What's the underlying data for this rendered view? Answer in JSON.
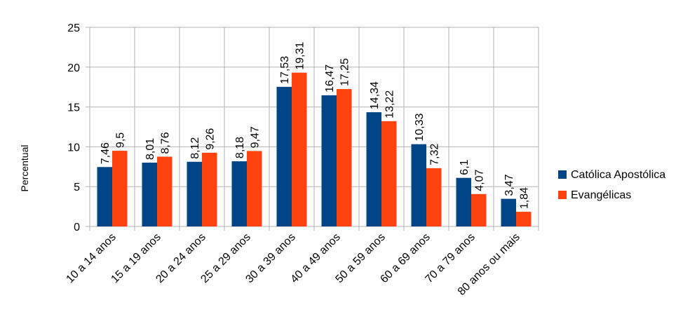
{
  "chart_data": {
    "type": "bar",
    "title": "",
    "xlabel": "",
    "ylabel": "Percentual",
    "ylim": [
      0,
      25
    ],
    "yticks": [
      "0",
      "5",
      "10",
      "15",
      "20",
      "25"
    ],
    "grid": true,
    "legend_position": "right",
    "categories": [
      "10 a 14 anos",
      "15 a 19 anos",
      "20 a 24 anos",
      "25 a 29 anos",
      "30 a 39 anos",
      "40 a 49 anos",
      "50 a 59 anos",
      "60 a 69 anos",
      "70 a 79 anos",
      "80 anos ou mais"
    ],
    "series": [
      {
        "name": "Católica Apostólica",
        "color": "#004586",
        "values": [
          7.46,
          8.01,
          8.12,
          8.18,
          17.53,
          16.47,
          14.34,
          10.33,
          6.1,
          3.47
        ],
        "labels": [
          "7,46",
          "8,01",
          "8,12",
          "8,18",
          "17,53",
          "16,47",
          "14,34",
          "10,33",
          "6,1",
          "3,47"
        ]
      },
      {
        "name": "Evangélicas",
        "color": "#ff420e",
        "values": [
          9.5,
          8.76,
          9.26,
          9.47,
          19.31,
          17.25,
          13.22,
          7.32,
          4.07,
          1.84
        ],
        "labels": [
          "9,5",
          "8,76",
          "9,26",
          "9,47",
          "19,31",
          "17,25",
          "13,22",
          "7,32",
          "4,07",
          "1,84"
        ]
      }
    ]
  }
}
